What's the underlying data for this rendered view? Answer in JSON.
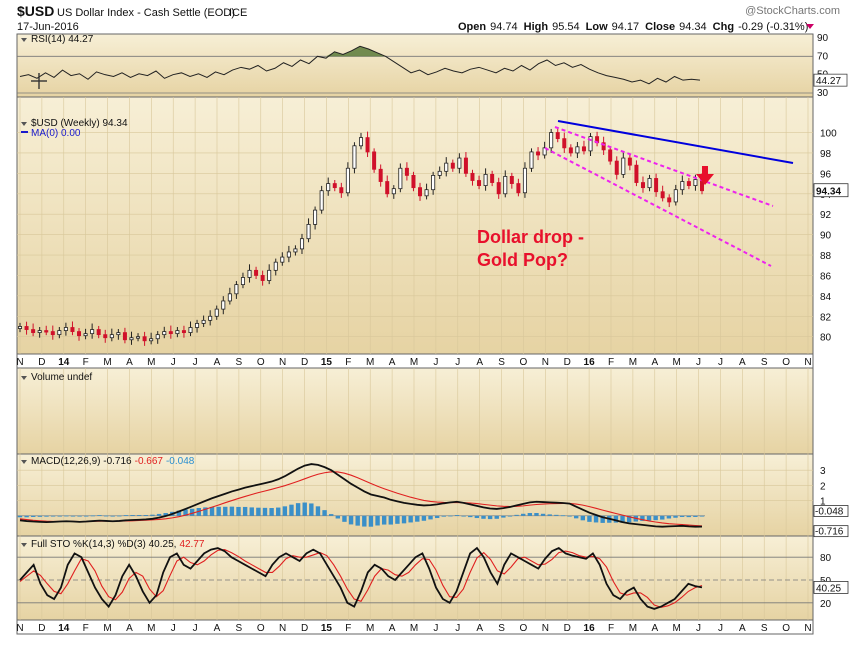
{
  "header": {
    "symbol": "$USD",
    "name": "US Dollar Index - Cash Settle (EOD)",
    "exchange": "ICE",
    "date": "17-Jun-2016",
    "watermark": "@StockCharts.com",
    "quote": {
      "open_label": "Open",
      "open": "94.74",
      "high_label": "High",
      "high": "95.54",
      "low_label": "Low",
      "low": "94.17",
      "close_label": "Close",
      "close": "94.34",
      "chg_label": "Chg",
      "chg": "-0.29 (-0.31%)"
    }
  },
  "chart_data": [
    {
      "type": "line",
      "panel": "rsi",
      "legend": "RSI(14) 44.27",
      "ylim": [
        30,
        90
      ],
      "ticks": [
        "90",
        "70",
        "50",
        "30"
      ],
      "last_label": "44.27",
      "values": [
        48,
        50,
        46,
        52,
        47,
        55,
        49,
        51,
        45,
        53,
        50,
        48,
        52,
        47,
        51,
        49,
        54,
        46,
        50,
        52,
        48,
        51,
        47,
        53,
        50,
        55,
        58,
        56,
        60,
        54,
        57,
        63,
        59,
        66,
        62,
        70,
        68,
        75,
        72,
        76,
        81,
        78,
        74,
        70,
        64,
        58,
        52,
        55,
        50,
        53,
        57,
        54,
        52,
        56,
        58,
        55,
        52,
        57,
        54,
        60,
        55,
        62,
        66,
        60,
        63,
        58,
        61,
        56,
        52,
        49,
        47,
        45,
        42,
        44,
        40,
        46,
        42,
        48,
        44,
        45,
        44
      ]
    },
    {
      "type": "candlestick",
      "panel": "price",
      "legend_price": "$USD (Weekly) 94.34",
      "legend_ma": "MA(0) 0.00",
      "ylim": [
        78.5,
        102.5
      ],
      "yticks": [
        80,
        82,
        84,
        86,
        88,
        90,
        92,
        94,
        96,
        98,
        100
      ],
      "last_label": "94.34",
      "x_labels": [
        "N",
        "D",
        "14",
        "F",
        "M",
        "A",
        "M",
        "J",
        "J",
        "A",
        "S",
        "O",
        "N",
        "D",
        "15",
        "F",
        "M",
        "A",
        "M",
        "J",
        "J",
        "A",
        "S",
        "O",
        "N",
        "D",
        "16",
        "F",
        "M",
        "A",
        "M",
        "J",
        "J",
        "A",
        "S",
        "O",
        "N"
      ],
      "closes": [
        81.0,
        80.7,
        80.4,
        80.6,
        80.5,
        80.2,
        80.6,
        80.9,
        80.5,
        80.1,
        80.3,
        80.7,
        80.2,
        79.9,
        80.2,
        80.4,
        79.7,
        79.9,
        80.0,
        79.6,
        79.8,
        80.2,
        80.5,
        80.3,
        80.6,
        80.4,
        80.9,
        81.3,
        81.6,
        82.0,
        82.7,
        83.5,
        84.2,
        85.1,
        85.8,
        86.5,
        86.0,
        85.5,
        86.5,
        87.3,
        87.8,
        88.3,
        88.6,
        89.6,
        91.0,
        92.4,
        94.3,
        95.0,
        94.6,
        94.1,
        96.5,
        98.7,
        99.5,
        98.1,
        96.4,
        95.2,
        94.0,
        94.5,
        96.5,
        95.8,
        94.6,
        93.8,
        94.4,
        95.8,
        96.2,
        97.0,
        96.5,
        97.5,
        96.0,
        95.3,
        94.8,
        95.9,
        95.1,
        94.0,
        95.7,
        95.0,
        94.1,
        96.5,
        98.1,
        97.8,
        98.5,
        100.0,
        99.4,
        98.5,
        98.0,
        98.6,
        98.2,
        99.6,
        99.0,
        98.3,
        97.2,
        95.9,
        97.5,
        96.8,
        95.1,
        94.6,
        95.5,
        94.2,
        93.6,
        93.2,
        94.4,
        95.2,
        94.8,
        95.4,
        94.3
      ],
      "annotation": [
        "Dollar drop -",
        "Gold Pop?"
      ]
    },
    {
      "type": "bar",
      "panel": "volume",
      "legend": "Volume undef"
    },
    {
      "type": "line",
      "panel": "macd",
      "legend_main": "MACD(12,26,9) -0.716",
      "legend_signal": "-0.667",
      "legend_hist": "-0.048",
      "ylim": [
        -1.2,
        3.8
      ],
      "yticks": [
        3,
        2,
        1
      ],
      "last_labels": [
        "-0.048",
        "-0.716"
      ],
      "macd": [
        -0.3,
        -0.35,
        -0.38,
        -0.4,
        -0.42,
        -0.4,
        -0.38,
        -0.36,
        -0.38,
        -0.4,
        -0.38,
        -0.35,
        -0.32,
        -0.34,
        -0.36,
        -0.34,
        -0.3,
        -0.28,
        -0.26,
        -0.24,
        -0.2,
        -0.12,
        -0.02,
        0.12,
        0.28,
        0.45,
        0.62,
        0.8,
        0.98,
        1.15,
        1.3,
        1.45,
        1.6,
        1.72,
        1.85,
        1.95,
        2.05,
        2.15,
        2.25,
        2.4,
        2.6,
        2.85,
        3.1,
        3.3,
        3.4,
        3.35,
        3.2,
        3.0,
        2.7,
        2.4,
        2.1,
        1.85,
        1.6,
        1.4,
        1.3,
        1.2,
        1.05,
        0.95,
        0.85,
        0.78,
        0.72,
        0.68,
        0.7,
        0.75,
        0.82,
        0.88,
        0.92,
        0.85,
        0.75,
        0.65,
        0.55,
        0.48,
        0.45,
        0.5,
        0.58,
        0.68,
        0.78,
        0.88,
        0.92,
        0.9,
        0.88,
        0.86,
        0.84,
        0.8,
        0.6,
        0.4,
        0.2,
        0.05,
        -0.1,
        -0.2,
        -0.3,
        -0.42,
        -0.5,
        -0.55,
        -0.6,
        -0.65,
        -0.7,
        -0.72,
        -0.7,
        -0.68,
        -0.66,
        -0.7,
        -0.72,
        -0.716
      ],
      "signal": [
        -0.2,
        -0.25,
        -0.3,
        -0.33,
        -0.36,
        -0.37,
        -0.37,
        -0.37,
        -0.37,
        -0.38,
        -0.38,
        -0.37,
        -0.36,
        -0.35,
        -0.35,
        -0.35,
        -0.34,
        -0.33,
        -0.31,
        -0.29,
        -0.27,
        -0.24,
        -0.2,
        -0.14,
        -0.06,
        0.04,
        0.16,
        0.29,
        0.43,
        0.57,
        0.71,
        0.86,
        1.0,
        1.14,
        1.27,
        1.4,
        1.52,
        1.63,
        1.74,
        1.86,
        1.98,
        2.12,
        2.27,
        2.43,
        2.59,
        2.73,
        2.83,
        2.89,
        2.88,
        2.8,
        2.67,
        2.5,
        2.31,
        2.12,
        1.94,
        1.78,
        1.63,
        1.48,
        1.35,
        1.22,
        1.11,
        1.01,
        0.94,
        0.9,
        0.88,
        0.87,
        0.87,
        0.86,
        0.84,
        0.8,
        0.75,
        0.7,
        0.65,
        0.62,
        0.61,
        0.62,
        0.65,
        0.7,
        0.74,
        0.77,
        0.79,
        0.8,
        0.81,
        0.81,
        0.77,
        0.7,
        0.6,
        0.49,
        0.37,
        0.26,
        0.15,
        0.04,
        -0.07,
        -0.17,
        -0.26,
        -0.34,
        -0.41,
        -0.47,
        -0.52,
        -0.55,
        -0.58,
        -0.61,
        -0.64,
        -0.667
      ]
    },
    {
      "type": "line",
      "panel": "stochastic",
      "legend_main": "Full STO %K(14,3) %D(3) 40.25,",
      "legend_d": "42.77",
      "ylim": [
        0,
        100
      ],
      "yticks": [
        "80",
        "50",
        "20"
      ],
      "last_label": "40.25",
      "k": [
        50,
        60,
        70,
        45,
        30,
        25,
        40,
        70,
        85,
        80,
        60,
        40,
        25,
        15,
        30,
        55,
        70,
        55,
        35,
        20,
        30,
        60,
        80,
        85,
        70,
        65,
        75,
        85,
        90,
        92,
        88,
        80,
        75,
        70,
        65,
        60,
        55,
        70,
        80,
        85,
        80,
        75,
        85,
        90,
        85,
        70,
        55,
        40,
        20,
        15,
        35,
        60,
        70,
        65,
        55,
        50,
        60,
        70,
        80,
        85,
        65,
        40,
        25,
        20,
        35,
        60,
        85,
        92,
        80,
        60,
        45,
        70,
        85,
        80,
        75,
        70,
        65,
        78,
        88,
        92,
        85,
        82,
        80,
        78,
        85,
        70,
        45,
        30,
        25,
        35,
        40,
        25,
        15,
        12,
        15,
        20,
        25,
        35,
        45,
        42,
        40.25
      ],
      "d": [
        48,
        55,
        62,
        56,
        45,
        35,
        32,
        45,
        62,
        78,
        75,
        62,
        42,
        28,
        24,
        34,
        52,
        60,
        55,
        38,
        28,
        36,
        56,
        75,
        80,
        73,
        70,
        75,
        83,
        89,
        90,
        86,
        81,
        75,
        70,
        65,
        60,
        60,
        68,
        78,
        82,
        80,
        80,
        83,
        86,
        82,
        70,
        55,
        38,
        25,
        22,
        37,
        55,
        65,
        63,
        57,
        55,
        60,
        70,
        78,
        77,
        63,
        43,
        28,
        27,
        38,
        60,
        79,
        86,
        77,
        62,
        58,
        67,
        78,
        80,
        75,
        70,
        71,
        77,
        86,
        88,
        86,
        82,
        80,
        81,
        78,
        67,
        48,
        33,
        30,
        33,
        33,
        27,
        17,
        14,
        16,
        20,
        27,
        35,
        40,
        42.77
      ]
    }
  ]
}
